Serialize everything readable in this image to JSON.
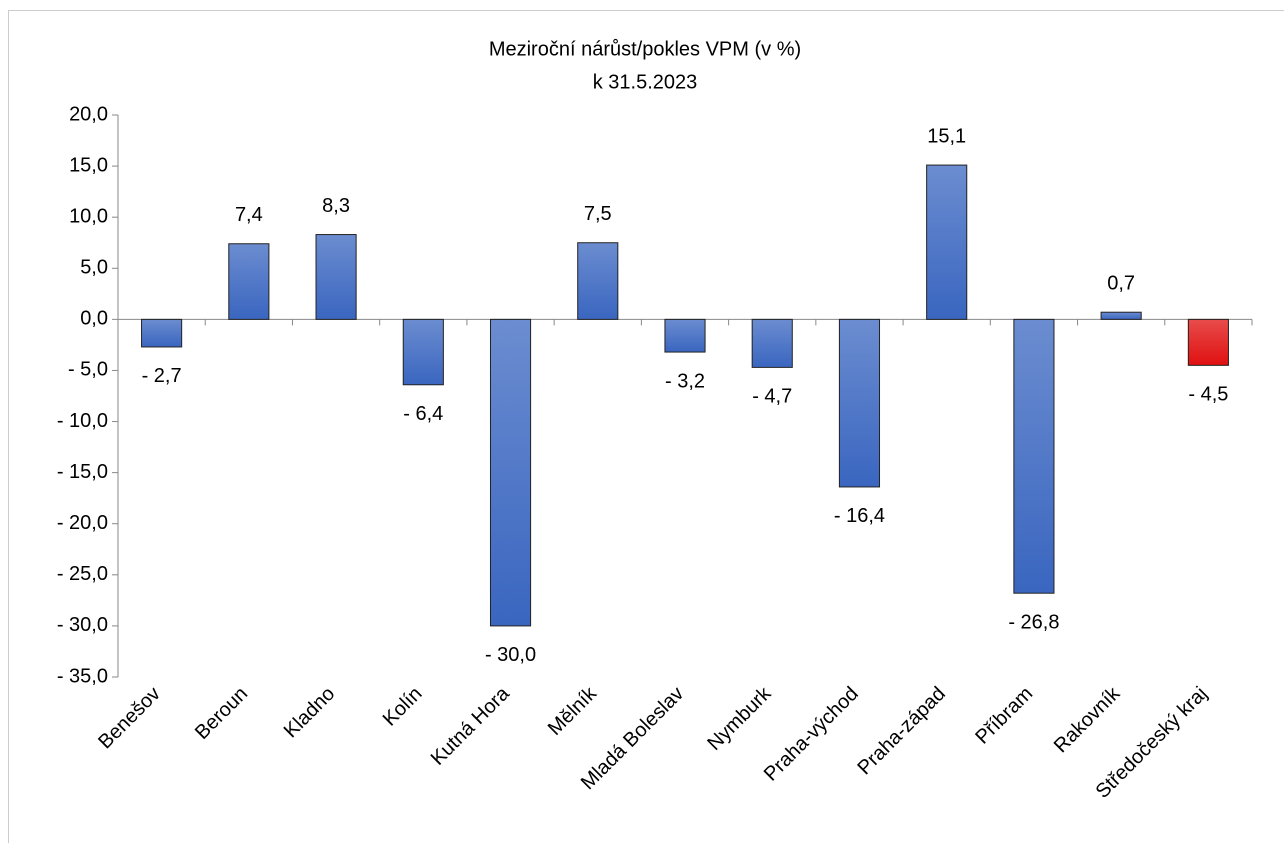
{
  "chart_data": {
    "type": "bar",
    "title": "Meziroční nárůst/pokles VPM (v %)",
    "subtitle": "k 31.5.2023",
    "categories": [
      "Benešov",
      "Beroun",
      "Kladno",
      "Kolín",
      "Kutná Hora",
      "Mělník",
      "Mladá Boleslav",
      "Nymburk",
      "Praha-východ",
      "Praha-západ",
      "Příbram",
      "Rakovník",
      "Středočeský kraj"
    ],
    "values": [
      -2.7,
      7.4,
      8.3,
      -6.4,
      -30.0,
      7.5,
      -3.2,
      -4.7,
      -16.4,
      15.1,
      -26.8,
      0.7,
      -4.5
    ],
    "value_labels": [
      "- 2,7",
      "7,4",
      "8,3",
      "- 6,4",
      "- 30,0",
      "7,5",
      "- 3,2",
      "- 4,7",
      "- 16,4",
      "15,1",
      "- 26,8",
      "0,7",
      "- 4,5"
    ],
    "colors": [
      "#3a66c0",
      "#3a66c0",
      "#3a66c0",
      "#3a66c0",
      "#3a66c0",
      "#3a66c0",
      "#3a66c0",
      "#3a66c0",
      "#3a66c0",
      "#3a66c0",
      "#3a66c0",
      "#3a66c0",
      "#e01010"
    ],
    "ylim": [
      -35,
      20
    ],
    "yticks": [
      {
        "value": 20,
        "label": "20,0"
      },
      {
        "value": 15,
        "label": "15,0"
      },
      {
        "value": 10,
        "label": "10,0"
      },
      {
        "value": 5,
        "label": "5,0"
      },
      {
        "value": 0,
        "label": "0,0"
      },
      {
        "value": -5,
        "label": "- 5,0"
      },
      {
        "value": -10,
        "label": "- 10,0"
      },
      {
        "value": -15,
        "label": "- 15,0"
      },
      {
        "value": -20,
        "label": "- 20,0"
      },
      {
        "value": -25,
        "label": "- 25,0"
      },
      {
        "value": -30,
        "label": "- 30,0"
      },
      {
        "value": -35,
        "label": "- 35,0"
      }
    ],
    "grid": false
  }
}
